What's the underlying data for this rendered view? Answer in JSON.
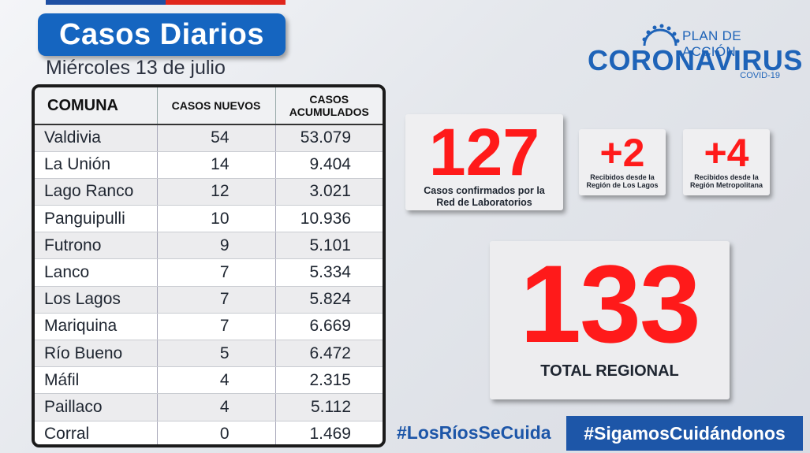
{
  "header": {
    "title": "Casos Diarios",
    "date": "Miércoles 13 de julio"
  },
  "logo": {
    "plan": "PLAN DE ACCIÓN",
    "name": "CORONAVIRUS",
    "sub": "COVID-19"
  },
  "table": {
    "headers": {
      "comuna": "COMUNA",
      "nuevos": "CASOS NUEVOS",
      "acum_1": "CASOS",
      "acum_2": "ACUMULADOS"
    },
    "rows": [
      {
        "comuna": "Valdivia",
        "nuevos": "54",
        "acum": "53.079"
      },
      {
        "comuna": "La Unión",
        "nuevos": "14",
        "acum": "9.404"
      },
      {
        "comuna": "Lago Ranco",
        "nuevos": "12",
        "acum": "3.021"
      },
      {
        "comuna": "Panguipulli",
        "nuevos": "10",
        "acum": "10.936"
      },
      {
        "comuna": "Futrono",
        "nuevos": "9",
        "acum": "5.101"
      },
      {
        "comuna": "Lanco",
        "nuevos": "7",
        "acum": "5.334"
      },
      {
        "comuna": "Los Lagos",
        "nuevos": "7",
        "acum": "5.824"
      },
      {
        "comuna": "Mariquina",
        "nuevos": "7",
        "acum": "6.669"
      },
      {
        "comuna": "Río Bueno",
        "nuevos": "5",
        "acum": "6.472"
      },
      {
        "comuna": "Máfil",
        "nuevos": "4",
        "acum": "2.315"
      },
      {
        "comuna": "Paillaco",
        "nuevos": "4",
        "acum": "5.112"
      },
      {
        "comuna": "Corral",
        "nuevos": "0",
        "acum": "1.469"
      }
    ]
  },
  "lab": {
    "value": "127",
    "caption_1": "Casos confirmados por la",
    "caption_2": "Red de Laboratorios"
  },
  "los_lagos": {
    "value": "+2",
    "caption_1": "Recibidos desde la",
    "caption_2": "Región de Los Lagos"
  },
  "metropolitana": {
    "value": "+4",
    "caption_1": "Recibidos desde la",
    "caption_2": "Región Metropolitana"
  },
  "total": {
    "value": "133",
    "caption": "TOTAL REGIONAL"
  },
  "hashtags": {
    "first": "#LosRíosSeCuida",
    "second": "#SigamosCuidándonos"
  },
  "colors": {
    "brand_blue": "#1565c0",
    "accent_red": "#ff1a1a"
  }
}
